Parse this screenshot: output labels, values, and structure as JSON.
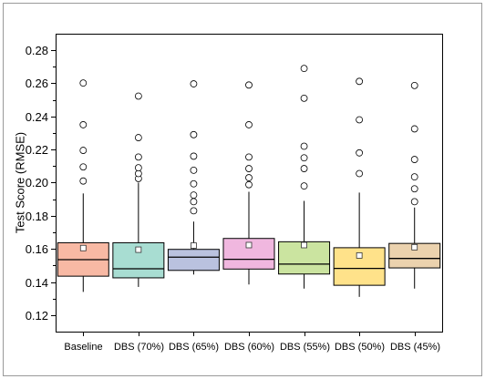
{
  "chart_data": {
    "type": "box",
    "title": "",
    "xlabel": "",
    "ylabel": "Test Score (RMSE)",
    "ylim": [
      0.11,
      0.29
    ],
    "yticks": [
      0.12,
      0.14,
      0.16,
      0.18,
      0.2,
      0.22,
      0.24,
      0.26,
      0.28
    ],
    "ytick_labels": [
      "0.12",
      "0.14",
      "0.16",
      "0.18",
      "0.20",
      "0.22",
      "0.24",
      "0.26",
      "0.28"
    ],
    "grid": false,
    "legend": "none",
    "categories": [
      "Baseline",
      "DBS (70%)",
      "DBS (65%)",
      "DBS (60%)",
      "DBS (55%)",
      "DBS (50%)",
      "DBS (45%)"
    ],
    "boxes": [
      {
        "color": "#F8B9A4",
        "whisker_low": 0.134,
        "q1": 0.1435,
        "median": 0.1535,
        "q3": 0.1637,
        "whisker_high": 0.1935,
        "mean": 0.1605,
        "outliers": [
          0.201,
          0.2095,
          0.2195,
          0.235,
          0.2602
        ]
      },
      {
        "color": "#A8DDD2",
        "whisker_low": 0.137,
        "q1": 0.1425,
        "median": 0.148,
        "q3": 0.1637,
        "whisker_high": 0.2,
        "mean": 0.1595,
        "outliers": [
          0.2025,
          0.2055,
          0.209,
          0.2155,
          0.2272,
          0.2523
        ]
      },
      {
        "color": "#BAC2DF",
        "whisker_low": 0.1445,
        "q1": 0.147,
        "median": 0.155,
        "q3": 0.1597,
        "whisker_high": 0.1765,
        "mean": 0.162,
        "outliers": [
          0.183,
          0.1885,
          0.1925,
          0.1993,
          0.2075,
          0.216,
          0.229,
          0.2597
        ]
      },
      {
        "color": "#F0B7DF",
        "whisker_low": 0.1385,
        "q1": 0.1478,
        "median": 0.1537,
        "q3": 0.1663,
        "whisker_high": 0.1945,
        "mean": 0.1623,
        "outliers": [
          0.1988,
          0.203,
          0.2085,
          0.2155,
          0.235,
          0.259
        ]
      },
      {
        "color": "#CBE4A0",
        "whisker_low": 0.136,
        "q1": 0.1448,
        "median": 0.1508,
        "q3": 0.1643,
        "whisker_high": 0.189,
        "mean": 0.1623,
        "outliers": [
          0.198,
          0.2085,
          0.215,
          0.222,
          0.251,
          0.269
        ]
      },
      {
        "color": "#FFE28A",
        "whisker_low": 0.131,
        "q1": 0.138,
        "median": 0.1482,
        "q3": 0.1607,
        "whisker_high": 0.194,
        "mean": 0.156,
        "outliers": [
          0.2055,
          0.218,
          0.238,
          0.2612
        ]
      },
      {
        "color": "#EBD2AE",
        "whisker_low": 0.136,
        "q1": 0.1485,
        "median": 0.1542,
        "q3": 0.1633,
        "whisker_high": 0.185,
        "mean": 0.161,
        "outliers": [
          0.1885,
          0.1963,
          0.2035,
          0.214,
          0.2325,
          0.2587
        ]
      }
    ]
  }
}
